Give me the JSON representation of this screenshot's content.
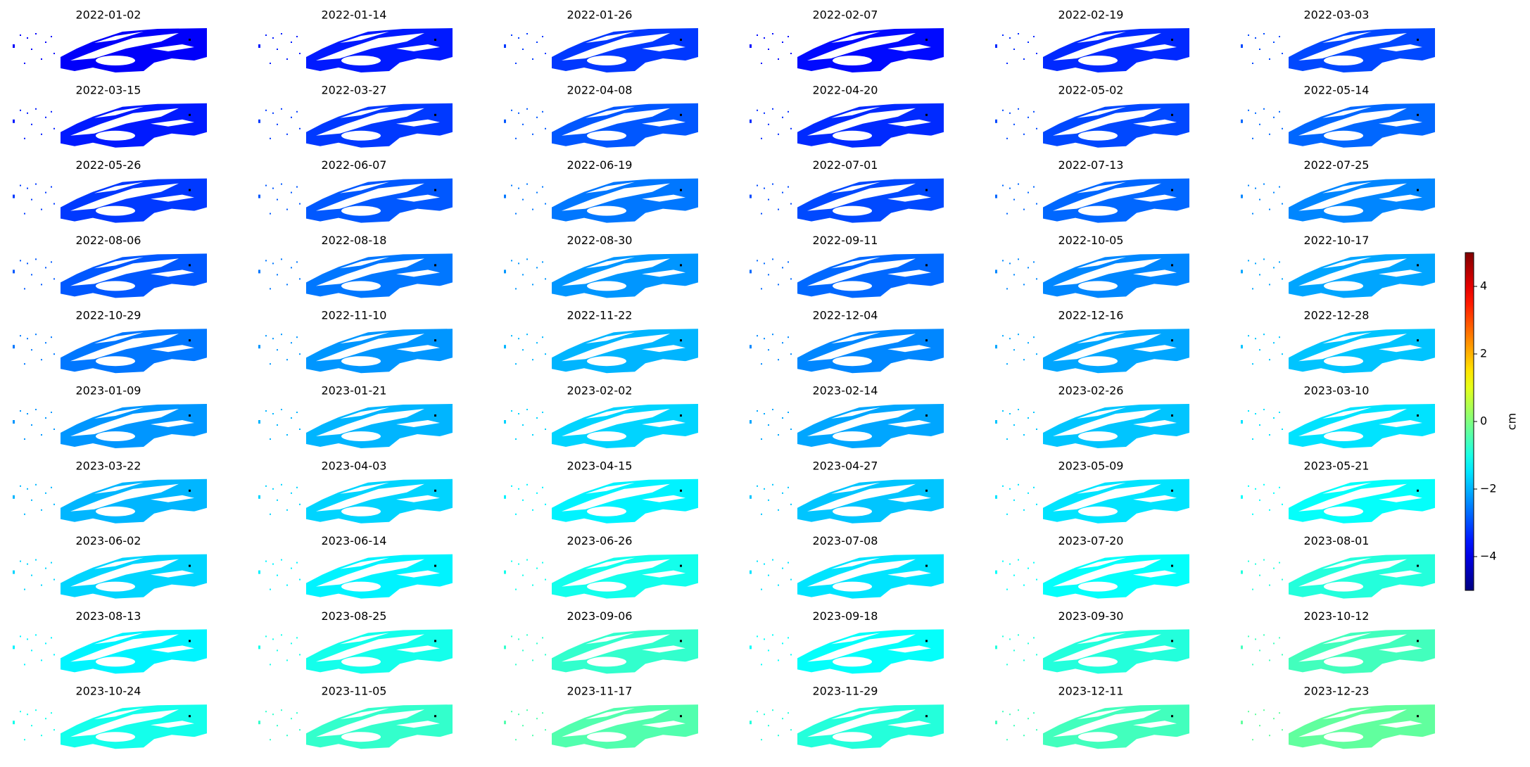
{
  "chart_data": {
    "type": "image-grid",
    "titles": [
      "2022-01-02",
      "2022-01-14",
      "2022-01-26",
      "2022-02-07",
      "2022-02-19",
      "2022-03-03",
      "2022-03-15",
      "2022-03-27",
      "2022-04-08",
      "2022-04-20",
      "2022-05-02",
      "2022-05-14",
      "2022-05-26",
      "2022-06-07",
      "2022-06-19",
      "2022-07-01",
      "2022-07-13",
      "2022-07-25",
      "2022-08-06",
      "2022-08-18",
      "2022-08-30",
      "2022-09-11",
      "2022-10-05",
      "2022-10-17",
      "2022-10-29",
      "2022-11-10",
      "2022-11-22",
      "2022-12-04",
      "2022-12-16",
      "2022-12-28",
      "2023-01-09",
      "2023-01-21",
      "2023-02-02",
      "2023-02-14",
      "2023-02-26",
      "2023-03-10",
      "2023-03-22",
      "2023-04-03",
      "2023-04-15",
      "2023-04-27",
      "2023-05-09",
      "2023-05-21",
      "2023-06-02",
      "2023-06-14",
      "2023-06-26",
      "2023-07-08",
      "2023-07-20",
      "2023-08-01",
      "2023-08-13",
      "2023-08-25",
      "2023-09-06",
      "2023-09-18",
      "2023-09-30",
      "2023-10-12",
      "2023-10-24",
      "2023-11-05",
      "2023-11-17",
      "2023-11-29",
      "2023-12-11",
      "2023-12-23"
    ],
    "colormap": "jet",
    "ylabel": "cm",
    "ylim": [
      -5,
      5
    ],
    "yticks": [
      {
        "value": -4,
        "label": "−4"
      },
      {
        "value": -2,
        "label": "−2"
      },
      0,
      2,
      4
    ]
  }
}
